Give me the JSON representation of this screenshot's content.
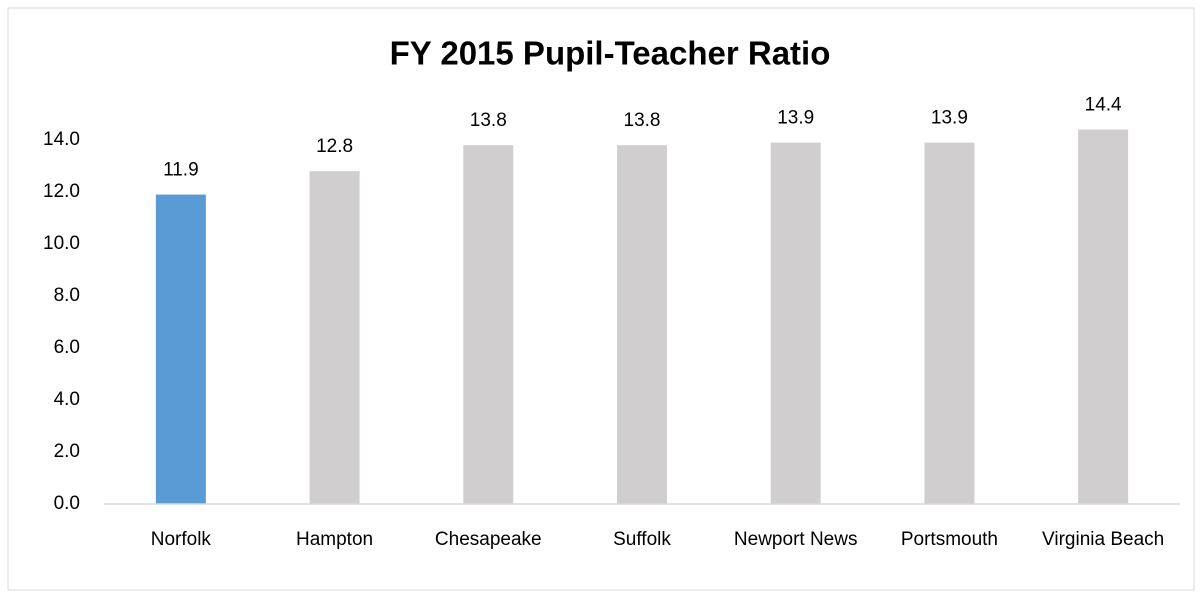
{
  "chart_data": {
    "type": "bar",
    "title": "FY 2015 Pupil-Teacher Ratio",
    "categories": [
      "Norfolk",
      "Hampton",
      "Chesapeake",
      "Suffolk",
      "Newport News",
      "Portsmouth",
      "Virginia Beach"
    ],
    "values": [
      11.9,
      12.8,
      13.8,
      13.8,
      13.9,
      13.9,
      14.4
    ],
    "colors": [
      "#5b9bd5",
      "#d0cece",
      "#d0cece",
      "#d0cece",
      "#d0cece",
      "#d0cece",
      "#d0cece"
    ],
    "ylim": [
      0,
      16
    ],
    "yticks": [
      {
        "value": 0,
        "label": "0.0"
      },
      {
        "value": 2,
        "label": "2.0"
      },
      {
        "value": 4,
        "label": "4.0"
      },
      {
        "value": 6,
        "label": "6.0"
      },
      {
        "value": 8,
        "label": "8.0"
      },
      {
        "value": 10,
        "label": "10.0"
      },
      {
        "value": 12,
        "label": "12.0"
      },
      {
        "value": 14,
        "label": "14.0"
      }
    ],
    "grid": false
  }
}
